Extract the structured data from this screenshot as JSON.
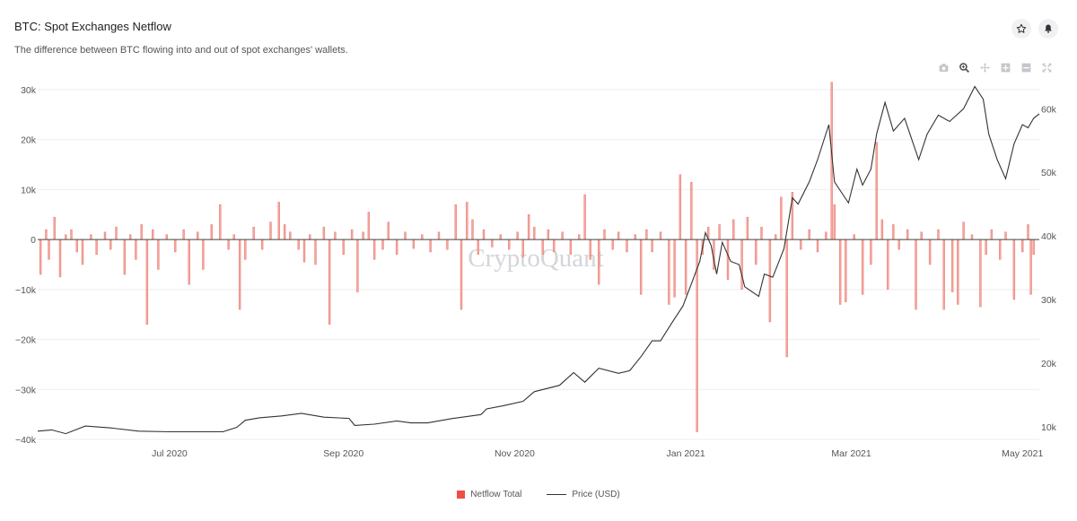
{
  "header": {
    "title": "BTC: Spot Exchanges Netflow",
    "subtitle": "The difference between BTC flowing into and out of spot exchanges' wallets."
  },
  "icons": {
    "favorite": "star-icon",
    "alert": "bell-icon",
    "toolbar": [
      "camera-icon",
      "zoom-icon",
      "pan-icon",
      "zoom-in-icon",
      "zoom-out-icon",
      "reset-axes-icon"
    ]
  },
  "watermark": "CryptoQuant",
  "colors": {
    "netflow": "#ee4f45",
    "netflow_fill": "#f0a79e",
    "price": "#333333"
  },
  "legend": {
    "netflow_label": "Netflow Total",
    "price_label": "Price (USD)"
  },
  "chart_data": {
    "type": "bar+line",
    "x_range": [
      "2020-05-15",
      "2021-05-07"
    ],
    "x_ticks": [
      {
        "date": "2020-07-01",
        "label": "Jul 2020"
      },
      {
        "date": "2020-09-01",
        "label": "Sep 2020"
      },
      {
        "date": "2020-11-01",
        "label": "Nov 2020"
      },
      {
        "date": "2021-01-01",
        "label": "Jan 2021"
      },
      {
        "date": "2021-03-01",
        "label": "Mar 2021"
      },
      {
        "date": "2021-05-01",
        "label": "May 2021"
      }
    ],
    "y_left": {
      "min": -40000,
      "max": 30000,
      "ticks": [
        -40000,
        -30000,
        -20000,
        -10000,
        0,
        10000,
        20000,
        30000
      ],
      "tick_labels": [
        "−40k",
        "−30k",
        "−20k",
        "−10k",
        "0",
        "10k",
        "20k",
        "30k"
      ]
    },
    "y_right": {
      "min": 8000,
      "max": 63000,
      "ticks": [
        10000,
        20000,
        30000,
        40000,
        50000,
        60000
      ],
      "tick_labels": [
        "10k",
        "20k",
        "30k",
        "40k",
        "50k",
        "60k"
      ]
    },
    "grid": true,
    "series": [
      {
        "name": "Netflow Total",
        "type": "bar",
        "axis": "left",
        "points": [
          [
            "2020-05-16",
            -7000
          ],
          [
            "2020-05-18",
            2000
          ],
          [
            "2020-05-19",
            -4000
          ],
          [
            "2020-05-21",
            4500
          ],
          [
            "2020-05-23",
            -7500
          ],
          [
            "2020-05-25",
            1000
          ],
          [
            "2020-05-27",
            2000
          ],
          [
            "2020-05-29",
            -2500
          ],
          [
            "2020-05-31",
            -5000
          ],
          [
            "2020-06-03",
            1000
          ],
          [
            "2020-06-05",
            -3000
          ],
          [
            "2020-06-08",
            1500
          ],
          [
            "2020-06-10",
            -2000
          ],
          [
            "2020-06-12",
            2500
          ],
          [
            "2020-06-15",
            -7000
          ],
          [
            "2020-06-17",
            1000
          ],
          [
            "2020-06-19",
            -4000
          ],
          [
            "2020-06-21",
            3000
          ],
          [
            "2020-06-23",
            -17000
          ],
          [
            "2020-06-25",
            2000
          ],
          [
            "2020-06-27",
            -6000
          ],
          [
            "2020-06-30",
            1000
          ],
          [
            "2020-07-03",
            -2500
          ],
          [
            "2020-07-06",
            2000
          ],
          [
            "2020-07-08",
            -9000
          ],
          [
            "2020-07-11",
            1500
          ],
          [
            "2020-07-13",
            -6000
          ],
          [
            "2020-07-16",
            3000
          ],
          [
            "2020-07-19",
            7000
          ],
          [
            "2020-07-22",
            -2000
          ],
          [
            "2020-07-24",
            1000
          ],
          [
            "2020-07-26",
            -14000
          ],
          [
            "2020-07-28",
            -4000
          ],
          [
            "2020-07-31",
            2500
          ],
          [
            "2020-08-03",
            -2000
          ],
          [
            "2020-08-06",
            3500
          ],
          [
            "2020-08-09",
            7500
          ],
          [
            "2020-08-11",
            3000
          ],
          [
            "2020-08-13",
            1500
          ],
          [
            "2020-08-16",
            -2000
          ],
          [
            "2020-08-18",
            -4500
          ],
          [
            "2020-08-20",
            1000
          ],
          [
            "2020-08-22",
            -5000
          ],
          [
            "2020-08-25",
            2500
          ],
          [
            "2020-08-27",
            -17000
          ],
          [
            "2020-08-29",
            1500
          ],
          [
            "2020-09-01",
            -3000
          ],
          [
            "2020-09-04",
            2000
          ],
          [
            "2020-09-06",
            -10500
          ],
          [
            "2020-09-08",
            1500
          ],
          [
            "2020-09-10",
            5500
          ],
          [
            "2020-09-12",
            -4000
          ],
          [
            "2020-09-15",
            -2000
          ],
          [
            "2020-09-17",
            3500
          ],
          [
            "2020-09-20",
            -3000
          ],
          [
            "2020-09-23",
            1500
          ],
          [
            "2020-09-26",
            -1800
          ],
          [
            "2020-09-29",
            1000
          ],
          [
            "2020-10-02",
            -2500
          ],
          [
            "2020-10-05",
            1500
          ],
          [
            "2020-10-08",
            -2000
          ],
          [
            "2020-10-11",
            7000
          ],
          [
            "2020-10-13",
            -14000
          ],
          [
            "2020-10-15",
            7500
          ],
          [
            "2020-10-17",
            4000
          ],
          [
            "2020-10-19",
            -3000
          ],
          [
            "2020-10-21",
            2000
          ],
          [
            "2020-10-24",
            -1500
          ],
          [
            "2020-10-27",
            1000
          ],
          [
            "2020-10-30",
            -2000
          ],
          [
            "2020-11-02",
            1500
          ],
          [
            "2020-11-04",
            -3500
          ],
          [
            "2020-11-06",
            5000
          ],
          [
            "2020-11-08",
            2500
          ],
          [
            "2020-11-11",
            -3000
          ],
          [
            "2020-11-13",
            2000
          ],
          [
            "2020-11-15",
            -2500
          ],
          [
            "2020-11-18",
            1500
          ],
          [
            "2020-11-21",
            -3000
          ],
          [
            "2020-11-24",
            1000
          ],
          [
            "2020-11-26",
            9000
          ],
          [
            "2020-11-28",
            -4000
          ],
          [
            "2020-12-01",
            -9000
          ],
          [
            "2020-12-03",
            2000
          ],
          [
            "2020-12-06",
            -2000
          ],
          [
            "2020-12-08",
            1500
          ],
          [
            "2020-12-11",
            -2500
          ],
          [
            "2020-12-14",
            1000
          ],
          [
            "2020-12-16",
            -11000
          ],
          [
            "2020-12-18",
            2000
          ],
          [
            "2020-12-20",
            -2500
          ],
          [
            "2020-12-23",
            1500
          ],
          [
            "2020-12-26",
            -13000
          ],
          [
            "2020-12-28",
            -11500
          ],
          [
            "2020-12-30",
            13000
          ],
          [
            "2021-01-01",
            -11000
          ],
          [
            "2021-01-03",
            11500
          ],
          [
            "2021-01-05",
            -38500
          ],
          [
            "2021-01-07",
            -3000
          ],
          [
            "2021-01-09",
            2500
          ],
          [
            "2021-01-11",
            -6000
          ],
          [
            "2021-01-13",
            3000
          ],
          [
            "2021-01-16",
            -8000
          ],
          [
            "2021-01-18",
            4000
          ],
          [
            "2021-01-21",
            -10000
          ],
          [
            "2021-01-23",
            4500
          ],
          [
            "2021-01-26",
            -5000
          ],
          [
            "2021-01-28",
            2500
          ],
          [
            "2021-01-31",
            -16500
          ],
          [
            "2021-02-02",
            1000
          ],
          [
            "2021-02-04",
            8500
          ],
          [
            "2021-02-06",
            -23500
          ],
          [
            "2021-02-08",
            9500
          ],
          [
            "2021-02-11",
            -2000
          ],
          [
            "2021-02-14",
            2000
          ],
          [
            "2021-02-17",
            -2500
          ],
          [
            "2021-02-20",
            1500
          ],
          [
            "2021-02-22",
            31500
          ],
          [
            "2021-02-23",
            7000
          ],
          [
            "2021-02-25",
            -13000
          ],
          [
            "2021-02-27",
            -12500
          ],
          [
            "2021-03-02",
            1000
          ],
          [
            "2021-03-05",
            -11000
          ],
          [
            "2021-03-08",
            -5000
          ],
          [
            "2021-03-10",
            19500
          ],
          [
            "2021-03-12",
            4000
          ],
          [
            "2021-03-14",
            -10000
          ],
          [
            "2021-03-16",
            3000
          ],
          [
            "2021-03-18",
            -2000
          ],
          [
            "2021-03-21",
            2000
          ],
          [
            "2021-03-24",
            -14000
          ],
          [
            "2021-03-26",
            1500
          ],
          [
            "2021-03-29",
            -5000
          ],
          [
            "2021-04-01",
            2000
          ],
          [
            "2021-04-03",
            -14000
          ],
          [
            "2021-04-06",
            -10500
          ],
          [
            "2021-04-08",
            -13000
          ],
          [
            "2021-04-10",
            3500
          ],
          [
            "2021-04-13",
            1000
          ],
          [
            "2021-04-16",
            -13500
          ],
          [
            "2021-04-18",
            -3000
          ],
          [
            "2021-04-20",
            2000
          ],
          [
            "2021-04-23",
            -4000
          ],
          [
            "2021-04-25",
            1500
          ],
          [
            "2021-04-28",
            -12000
          ],
          [
            "2021-05-01",
            -2500
          ],
          [
            "2021-05-03",
            3000
          ],
          [
            "2021-05-04",
            -11000
          ],
          [
            "2021-05-05",
            -3000
          ]
        ]
      },
      {
        "name": "Price (USD)",
        "type": "line",
        "axis": "right",
        "points": [
          [
            "2020-05-15",
            9300
          ],
          [
            "2020-05-20",
            9500
          ],
          [
            "2020-05-25",
            8900
          ],
          [
            "2020-06-01",
            10100
          ],
          [
            "2020-06-10",
            9800
          ],
          [
            "2020-06-20",
            9300
          ],
          [
            "2020-07-01",
            9200
          ],
          [
            "2020-07-15",
            9200
          ],
          [
            "2020-07-20",
            9200
          ],
          [
            "2020-07-25",
            9900
          ],
          [
            "2020-07-28",
            11000
          ],
          [
            "2020-08-02",
            11400
          ],
          [
            "2020-08-10",
            11700
          ],
          [
            "2020-08-17",
            12100
          ],
          [
            "2020-08-25",
            11500
          ],
          [
            "2020-09-03",
            11300
          ],
          [
            "2020-09-05",
            10200
          ],
          [
            "2020-09-12",
            10400
          ],
          [
            "2020-09-20",
            10900
          ],
          [
            "2020-09-25",
            10600
          ],
          [
            "2020-10-01",
            10600
          ],
          [
            "2020-10-10",
            11300
          ],
          [
            "2020-10-20",
            11900
          ],
          [
            "2020-10-22",
            12800
          ],
          [
            "2020-10-28",
            13300
          ],
          [
            "2020-11-04",
            14000
          ],
          [
            "2020-11-08",
            15500
          ],
          [
            "2020-11-17",
            16500
          ],
          [
            "2020-11-22",
            18500
          ],
          [
            "2020-11-26",
            17000
          ],
          [
            "2020-12-01",
            19200
          ],
          [
            "2020-12-08",
            18400
          ],
          [
            "2020-12-12",
            18800
          ],
          [
            "2020-12-16",
            21000
          ],
          [
            "2020-12-20",
            23500
          ],
          [
            "2020-12-23",
            23500
          ],
          [
            "2020-12-27",
            26300
          ],
          [
            "2020-12-31",
            29000
          ],
          [
            "2021-01-03",
            32500
          ],
          [
            "2021-01-06",
            36000
          ],
          [
            "2021-01-08",
            40500
          ],
          [
            "2021-01-10",
            38500
          ],
          [
            "2021-01-12",
            34000
          ],
          [
            "2021-01-14",
            39000
          ],
          [
            "2021-01-17",
            36000
          ],
          [
            "2021-01-20",
            35500
          ],
          [
            "2021-01-22",
            32000
          ],
          [
            "2021-01-27",
            30500
          ],
          [
            "2021-01-29",
            34000
          ],
          [
            "2021-02-01",
            33500
          ],
          [
            "2021-02-05",
            38000
          ],
          [
            "2021-02-08",
            46000
          ],
          [
            "2021-02-10",
            45000
          ],
          [
            "2021-02-14",
            48500
          ],
          [
            "2021-02-17",
            52000
          ],
          [
            "2021-02-21",
            57500
          ],
          [
            "2021-02-23",
            48500
          ],
          [
            "2021-02-26",
            46500
          ],
          [
            "2021-02-28",
            45200
          ],
          [
            "2021-03-03",
            50500
          ],
          [
            "2021-03-05",
            48000
          ],
          [
            "2021-03-08",
            50500
          ],
          [
            "2021-03-10",
            56000
          ],
          [
            "2021-03-13",
            61000
          ],
          [
            "2021-03-16",
            56500
          ],
          [
            "2021-03-20",
            58500
          ],
          [
            "2021-03-25",
            52000
          ],
          [
            "2021-03-28",
            56000
          ],
          [
            "2021-04-01",
            59000
          ],
          [
            "2021-04-05",
            58000
          ],
          [
            "2021-04-10",
            60000
          ],
          [
            "2021-04-14",
            63500
          ],
          [
            "2021-04-17",
            61500
          ],
          [
            "2021-04-19",
            56000
          ],
          [
            "2021-04-22",
            52000
          ],
          [
            "2021-04-25",
            49000
          ],
          [
            "2021-04-28",
            54500
          ],
          [
            "2021-05-01",
            57500
          ],
          [
            "2021-05-03",
            57000
          ],
          [
            "2021-05-05",
            58500
          ],
          [
            "2021-05-07",
            59200
          ]
        ]
      }
    ]
  }
}
